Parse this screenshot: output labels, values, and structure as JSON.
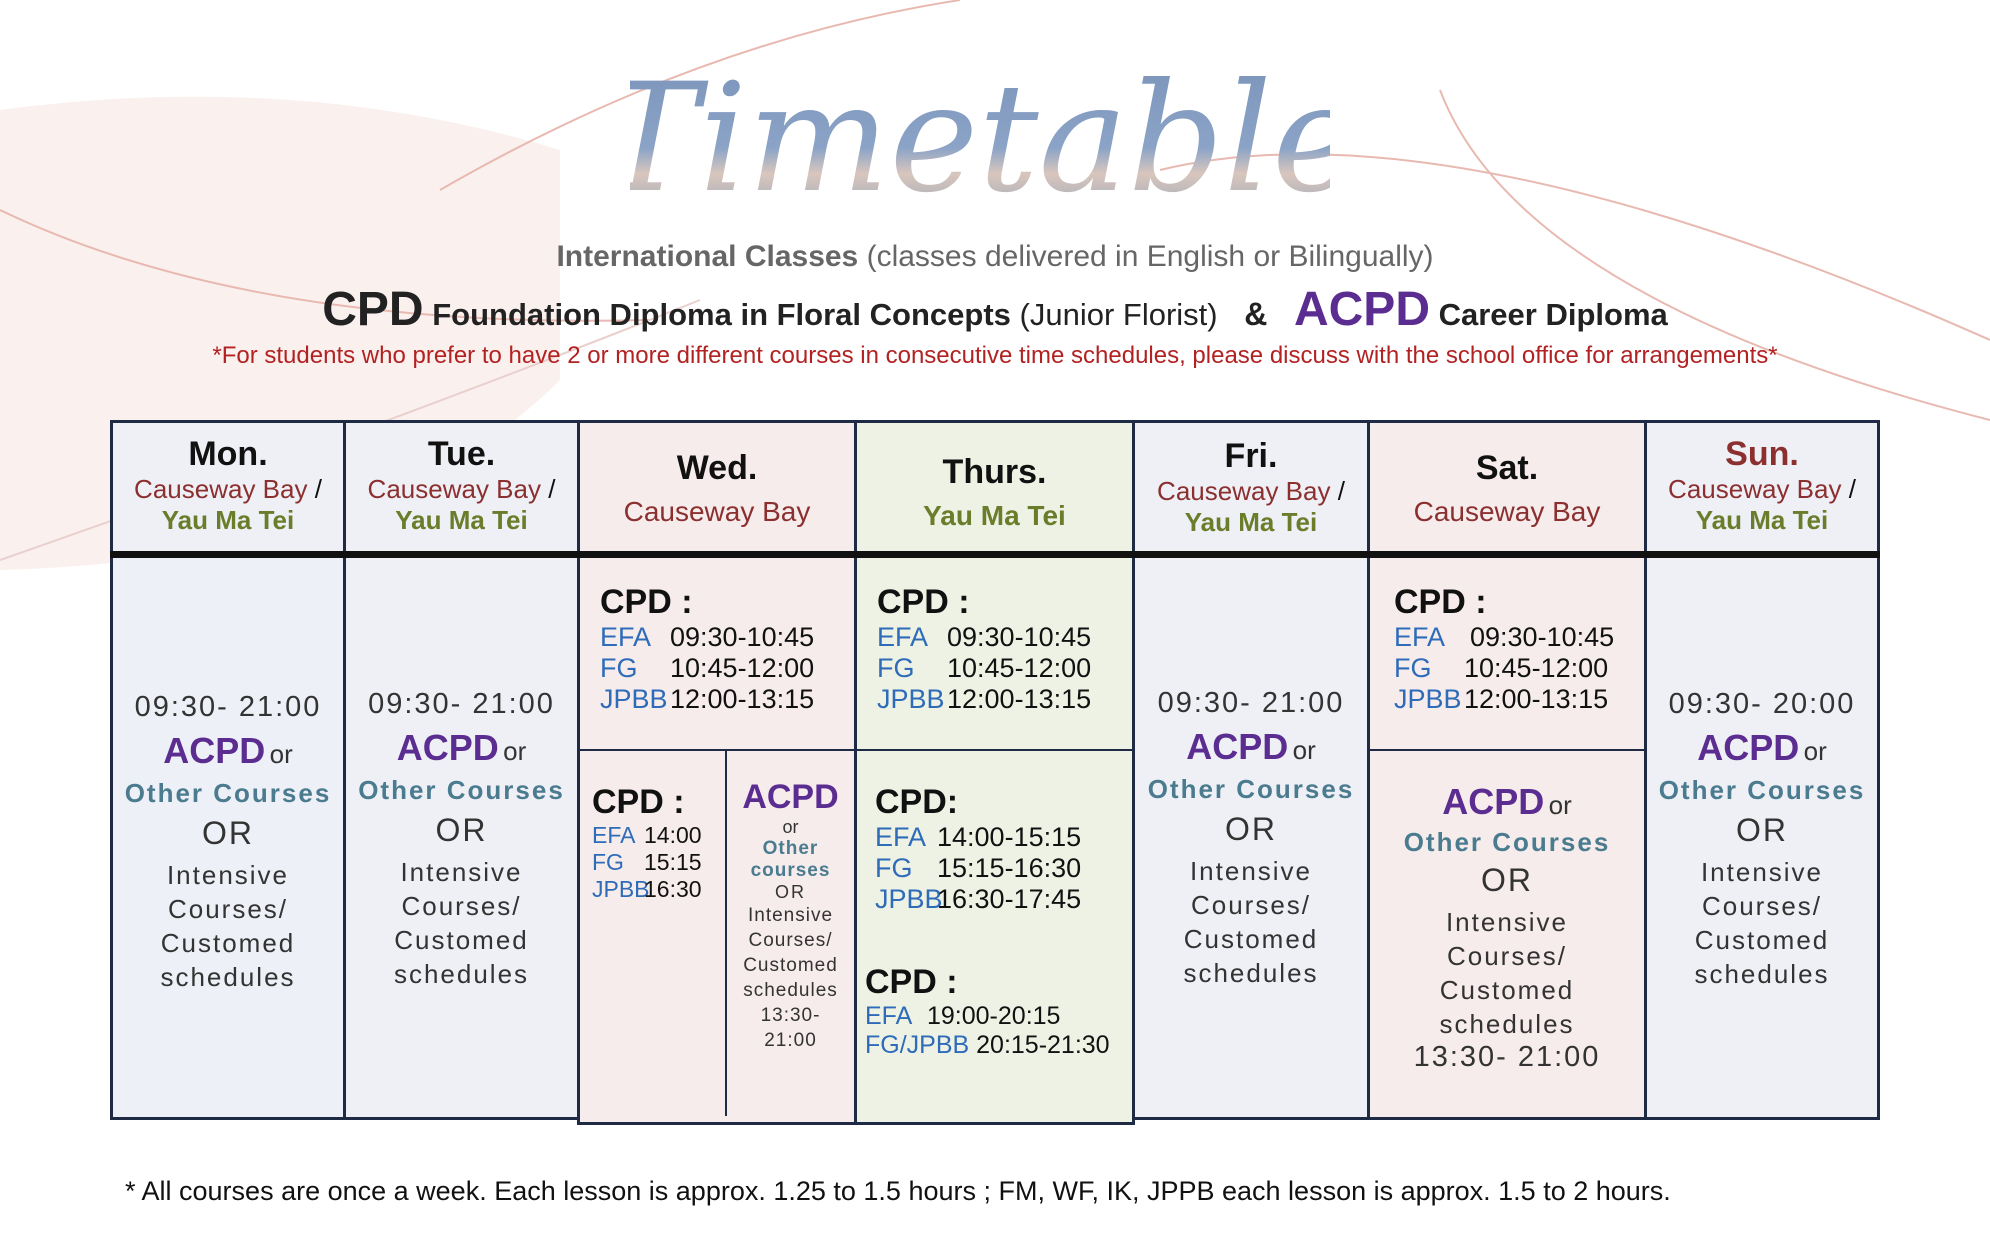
{
  "header": {
    "title": "Timetable",
    "subtitle_bold": "International  Classes",
    "subtitle_rest": "(classes delivered  in English  or  Bilingually)",
    "cpd": "CPD",
    "cpd_name": "Foundation  Diploma  in  Floral  Concepts",
    "cpd_sub": "(Junior Florist)",
    "amp": "&",
    "acpd": "ACPD",
    "acpd_name": "Career Diploma",
    "note": "*For students who prefer  to  have  2  or more  different  courses in  consecutive  time  schedules,  please  discuss  with  the school office for arrangements*"
  },
  "colors": {
    "accent_purple": "#5c2d91",
    "red_note": "#b22222",
    "border": "#1f2a44",
    "yau_ma_tei": "#6b7d2a",
    "causeway_bay": "#8b2f2f"
  },
  "days": {
    "mon": {
      "name": "Mon.",
      "loc1": "Causeway Bay",
      "slash": "/",
      "loc2": "Yau Ma Tei",
      "time": "09:30- 21:00",
      "acpd": "ACPD",
      "or_small": "or",
      "other": "Other Courses",
      "or_big": "OR",
      "intensive": "Intensive",
      "courses": "Courses/",
      "customed": "Customed",
      "schedules": "schedules"
    },
    "tue": {
      "name": "Tue.",
      "loc1": "Causeway Bay",
      "slash": "/",
      "loc2": "Yau Ma Tei",
      "time": "09:30- 21:00",
      "acpd": "ACPD",
      "or_small": "or",
      "other": "Other Courses",
      "or_big": "OR",
      "intensive": "Intensive",
      "courses": "Courses/",
      "customed": "Customed",
      "schedules": "schedules"
    },
    "wed": {
      "name": "Wed.",
      "loc": "Causeway Bay",
      "cpd": "CPD",
      "colon": ":",
      "rows": [
        {
          "code": "EFA",
          "time": "09:30-10:45"
        },
        {
          "code": "FG",
          "time": "10:45-12:00"
        },
        {
          "code": "JPBB",
          "time": "12:00-13:15"
        }
      ],
      "cpd2": "CPD",
      "rows2": [
        {
          "code": "EFA",
          "time": "14:00"
        },
        {
          "code": "FG",
          "time": "15:15"
        },
        {
          "code": "JPBB",
          "time": "16:30"
        }
      ],
      "acpd": "ACPD",
      "or1": "or",
      "other1": "Other",
      "other2": "courses",
      "or2": "OR",
      "intensive": "Intensive",
      "courses": "Courses/",
      "customed": "Customed",
      "schedules": "schedules",
      "t1": "13:30-",
      "t2": "21:00"
    },
    "thu": {
      "name": "Thurs.",
      "loc": "Yau Ma Tei",
      "cpd": "CPD",
      "colon": ":",
      "rows": [
        {
          "code": "EFA",
          "time": "09:30-10:45"
        },
        {
          "code": "FG",
          "time": "10:45-12:00"
        },
        {
          "code": "JPBB",
          "time": "12:00-13:15"
        }
      ],
      "cpd2": "CPD",
      "rows2": [
        {
          "code": "EFA",
          "time": "14:00-15:15"
        },
        {
          "code": "FG",
          "time": "15:15-16:30"
        },
        {
          "code": "JPBB",
          "time": "16:30-17:45"
        }
      ],
      "cpd3": "CPD",
      "rows3": [
        {
          "code": "EFA",
          "time": "19:00-20:15"
        },
        {
          "code": "FG/JPBB",
          "time": "20:15-21:30"
        }
      ]
    },
    "fri": {
      "name": "Fri.",
      "loc1": "Causeway Bay",
      "slash": "/",
      "loc2": "Yau Ma Tei",
      "time": "09:30- 21:00",
      "acpd": "ACPD",
      "or_small": "or",
      "other": "Other Courses",
      "or_big": "OR",
      "intensive": "Intensive",
      "courses": "Courses/",
      "customed": "Customed",
      "schedules": "schedules"
    },
    "sat": {
      "name": "Sat.",
      "loc": "Causeway Bay",
      "cpd": "CPD",
      "colon": ":",
      "rows": [
        {
          "code": "EFA",
          "time": "09:30-10:45"
        },
        {
          "code": "FG",
          "time": "10:45-12:00"
        },
        {
          "code": "JPBB",
          "time": "12:00-13:15"
        }
      ],
      "acpd": "ACPD",
      "or_small": "or",
      "other": "Other Courses",
      "or_big": "OR",
      "intensive": "Intensive",
      "courses": "Courses/",
      "customed": "Customed",
      "schedules": "schedules",
      "time2": "13:30- 21:00"
    },
    "sun": {
      "name": "Sun.",
      "loc1": "Causeway Bay",
      "slash": "/",
      "loc2": "Yau Ma Tei",
      "time": "09:30- 20:00",
      "acpd": "ACPD",
      "or_small": "or",
      "other": "Other Courses",
      "or_big": "OR",
      "intensive": "Intensive",
      "courses": "Courses/",
      "customed": "Customed",
      "schedules": "schedules"
    }
  },
  "footer": "* All courses are once a week.  Each lesson is approx. 1.25 to 1.5 hours ; FM, WF, IK, JPPB each lesson is approx. 1.5 to 2 hours."
}
